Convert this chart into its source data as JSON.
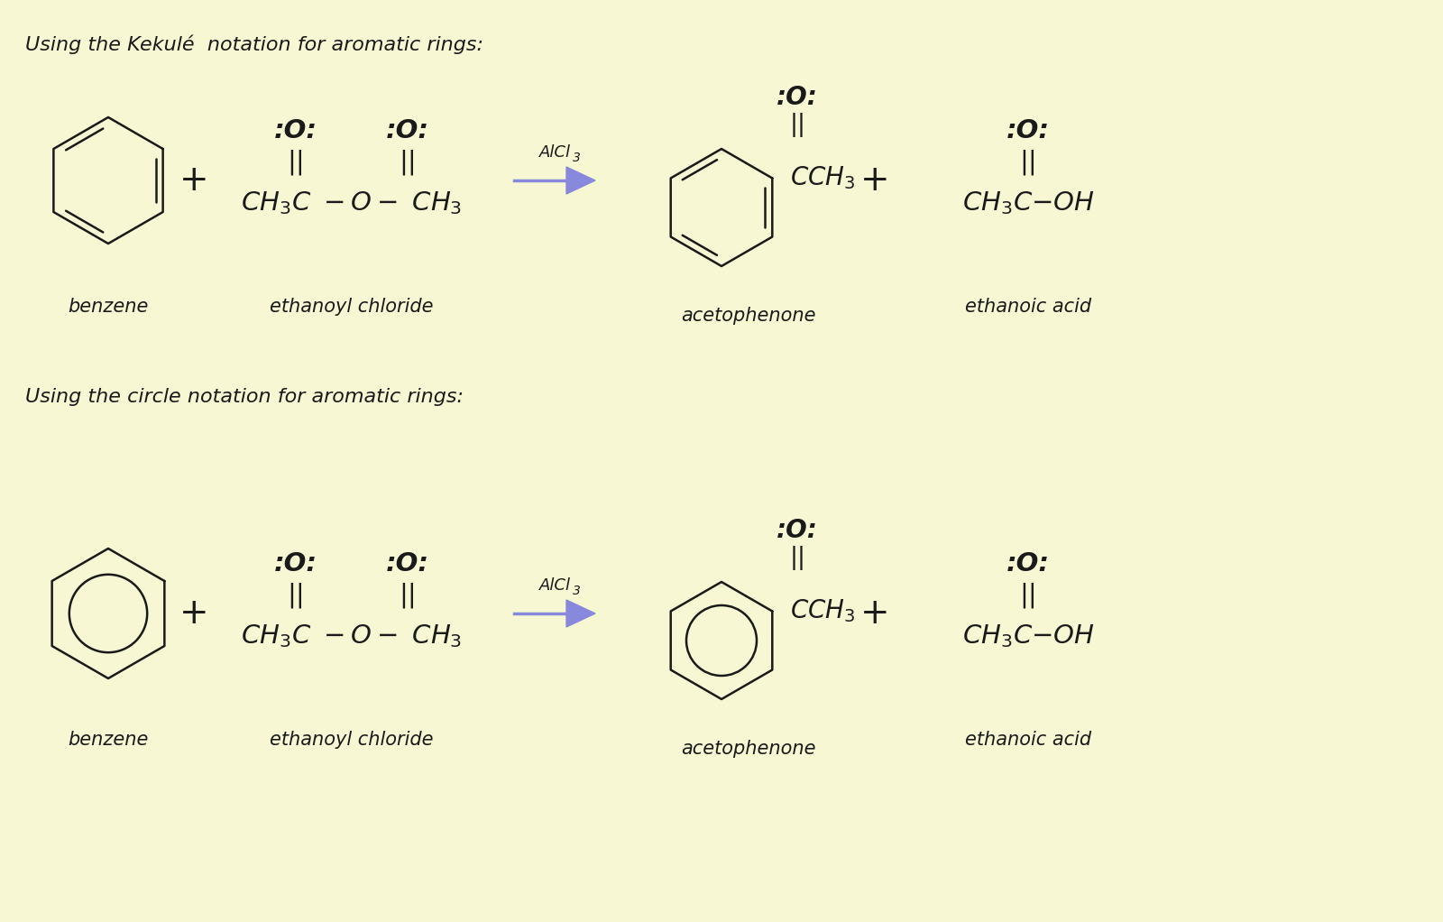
{
  "bg_color": "#f7f7d4",
  "title1": "Using the Kekulé  notation for aromatic rings:",
  "title2": "Using the circle notation for aromatic rings:",
  "label_benzene": "benzene",
  "label_anhydride": "ethanoyl chloride",
  "label_acetophenone": "acetophenone",
  "label_acid": "ethanoic acid",
  "catalyst": "AlCl",
  "catalyst_sub": "3",
  "text_color": "#1a1a1a",
  "arrow_color": "#8888dd",
  "struct_color": "#1a1a1a",
  "font_size_label": 15,
  "font_size_title": 16,
  "font_size_formula": 20,
  "font_size_catalyst": 13
}
